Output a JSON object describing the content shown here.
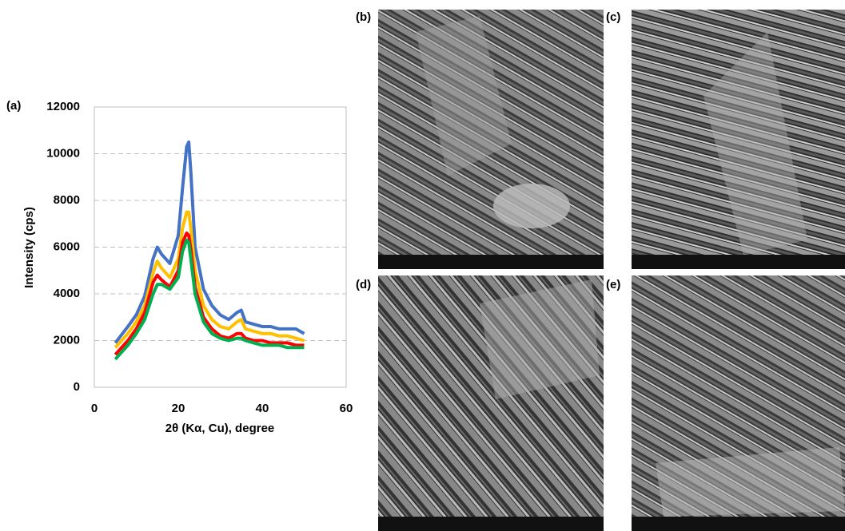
{
  "chart_data": {
    "type": "line",
    "panel_label": "(a)",
    "x_label": "2θ (Kα, Cu), degree",
    "y_label": "Intensity (cps)",
    "xlim": [
      0,
      60
    ],
    "xticks": [
      0,
      20,
      40,
      60
    ],
    "ylim": [
      0,
      12000
    ],
    "yticks": [
      0,
      2000,
      4000,
      6000,
      8000,
      10000,
      12000
    ],
    "grid": true,
    "x": [
      5,
      8,
      10,
      12,
      14,
      15,
      16,
      18,
      20,
      21,
      22,
      22.5,
      23,
      24,
      26,
      28,
      30,
      32,
      34,
      35,
      36,
      38,
      40,
      42,
      44,
      46,
      48,
      50
    ],
    "series": [
      {
        "color": "#4472c4",
        "values": [
          1900,
          2600,
          3100,
          3900,
          5500,
          6000,
          5700,
          5300,
          6500,
          8500,
          10300,
          10500,
          9200,
          6000,
          4200,
          3500,
          3100,
          2900,
          3200,
          3300,
          2800,
          2700,
          2600,
          2600,
          2500,
          2500,
          2500,
          2300
        ]
      },
      {
        "color": "#ffc000",
        "values": [
          1700,
          2300,
          2800,
          3500,
          4900,
          5400,
          5100,
          4700,
          5500,
          6800,
          7500,
          7500,
          6800,
          5000,
          3500,
          2900,
          2600,
          2500,
          2800,
          2900,
          2500,
          2400,
          2300,
          2300,
          2200,
          2200,
          2100,
          2000
        ]
      },
      {
        "color": "#ff0000",
        "values": [
          1400,
          2000,
          2500,
          3200,
          4500,
          4800,
          4600,
          4300,
          5000,
          6200,
          6600,
          6500,
          5900,
          4300,
          3000,
          2500,
          2200,
          2100,
          2300,
          2300,
          2100,
          2000,
          2000,
          1900,
          1900,
          1900,
          1800,
          1800
        ]
      },
      {
        "color": "#00b050",
        "values": [
          1200,
          1800,
          2300,
          2900,
          4000,
          4400,
          4400,
          4200,
          4700,
          5800,
          6300,
          6200,
          5500,
          4000,
          2800,
          2300,
          2100,
          2000,
          2100,
          2100,
          2000,
          1900,
          1800,
          1800,
          1800,
          1700,
          1700,
          1700
        ]
      }
    ]
  },
  "panels": [
    {
      "label": "(b)"
    },
    {
      "label": "(c)"
    },
    {
      "label": "(d)"
    },
    {
      "label": "(e)"
    }
  ]
}
